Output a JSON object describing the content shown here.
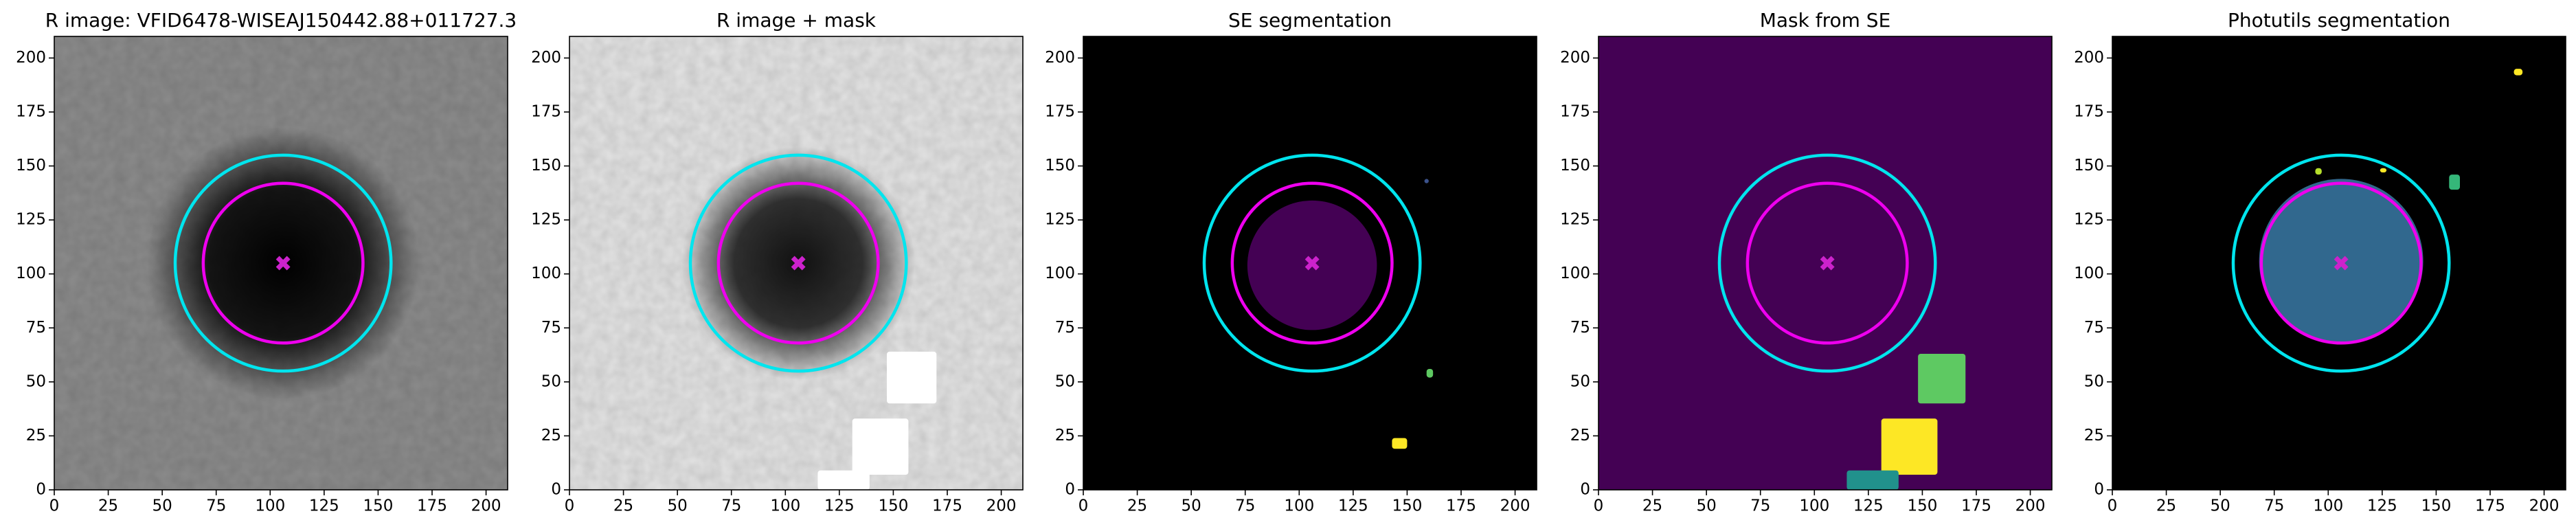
{
  "chart_data": [
    {
      "type": "image",
      "title": "R image: VFID6478-WISEAJ150442.88+011727.3",
      "background": "#8c8c8c",
      "noise": true,
      "blob": {
        "x": 106,
        "y": 105,
        "r": 42,
        "color": "#000000"
      },
      "patches": [],
      "circles": [
        {
          "x": 106,
          "y": 105,
          "r": 50,
          "color": "#00e5ee"
        },
        {
          "x": 106,
          "y": 105,
          "r": 37,
          "color": "#ee00ee"
        }
      ],
      "marker": {
        "x": 106,
        "y": 105,
        "color": "#cc22cc"
      },
      "xlim": [
        0,
        210
      ],
      "ylim": [
        0,
        210
      ],
      "xticks": [
        0,
        25,
        50,
        75,
        100,
        125,
        150,
        175,
        200
      ],
      "yticks": [
        0,
        25,
        50,
        75,
        100,
        125,
        150,
        175,
        200
      ]
    },
    {
      "type": "image",
      "title": "R image + mask",
      "background": "#e4e4e4",
      "noise": true,
      "blob": {
        "x": 106,
        "y": 105,
        "r": 36,
        "color": "#111111"
      },
      "patches": [
        {
          "x": 147,
          "y": 40,
          "w": 23,
          "h": 24,
          "color": "#ffffff"
        },
        {
          "x": 131,
          "y": 7,
          "w": 26,
          "h": 26,
          "color": "#ffffff"
        },
        {
          "x": 115,
          "y": 0,
          "w": 24,
          "h": 9,
          "color": "#ffffff"
        }
      ],
      "circles": [
        {
          "x": 106,
          "y": 105,
          "r": 50,
          "color": "#00e5ee"
        },
        {
          "x": 106,
          "y": 105,
          "r": 37,
          "color": "#ee00ee"
        }
      ],
      "marker": {
        "x": 106,
        "y": 105,
        "color": "#cc22cc"
      },
      "xlim": [
        0,
        210
      ],
      "ylim": [
        0,
        210
      ],
      "xticks": [
        0,
        25,
        50,
        75,
        100,
        125,
        150,
        175,
        200
      ],
      "yticks": [
        0,
        25,
        50,
        75,
        100,
        125,
        150,
        175,
        200
      ]
    },
    {
      "type": "image",
      "title": "SE segmentation",
      "background": "#000000",
      "noise": false,
      "blob": {
        "x": 106,
        "y": 104,
        "r": 30,
        "color": "#440154"
      },
      "patches": [
        {
          "x": 143,
          "y": 19,
          "w": 7,
          "h": 5,
          "color": "#fde725"
        },
        {
          "x": 159,
          "y": 52,
          "w": 3,
          "h": 4,
          "color": "#5ec962"
        },
        {
          "x": 158,
          "y": 142,
          "w": 2,
          "h": 2,
          "color": "#3b528b"
        }
      ],
      "circles": [
        {
          "x": 106,
          "y": 105,
          "r": 50,
          "color": "#00e5ee"
        },
        {
          "x": 106,
          "y": 105,
          "r": 37,
          "color": "#ee00ee"
        }
      ],
      "marker": {
        "x": 106,
        "y": 105,
        "color": "#cc22cc"
      },
      "xlim": [
        0,
        210
      ],
      "ylim": [
        0,
        210
      ],
      "xticks": [
        0,
        25,
        50,
        75,
        100,
        125,
        150,
        175,
        200
      ],
      "yticks": [
        0,
        25,
        50,
        75,
        100,
        125,
        150,
        175,
        200
      ]
    },
    {
      "type": "image",
      "title": "Mask from SE",
      "background": "#440154",
      "noise": false,
      "blob": null,
      "patches": [
        {
          "x": 148,
          "y": 40,
          "w": 22,
          "h": 23,
          "color": "#5ec962"
        },
        {
          "x": 131,
          "y": 7,
          "w": 26,
          "h": 26,
          "color": "#fde725"
        },
        {
          "x": 115,
          "y": 0,
          "w": 24,
          "h": 9,
          "color": "#21918c"
        }
      ],
      "circles": [
        {
          "x": 106,
          "y": 105,
          "r": 50,
          "color": "#00e5ee"
        },
        {
          "x": 106,
          "y": 105,
          "r": 37,
          "color": "#ee00ee"
        }
      ],
      "marker": {
        "x": 106,
        "y": 105,
        "color": "#cc22cc"
      },
      "xlim": [
        0,
        210
      ],
      "ylim": [
        0,
        210
      ],
      "xticks": [
        0,
        25,
        50,
        75,
        100,
        125,
        150,
        175,
        200
      ],
      "yticks": [
        0,
        25,
        50,
        75,
        100,
        125,
        150,
        175,
        200
      ]
    },
    {
      "type": "image",
      "title": "Photutils segmentation",
      "background": "#000000",
      "noise": false,
      "blob": {
        "x": 106,
        "y": 106,
        "r": 38,
        "color": "#31688e"
      },
      "patches": [
        {
          "x": 186,
          "y": 192,
          "w": 4,
          "h": 3,
          "color": "#fde725"
        },
        {
          "x": 156,
          "y": 139,
          "w": 5,
          "h": 7,
          "color": "#35b779"
        },
        {
          "x": 94,
          "y": 146,
          "w": 3,
          "h": 3,
          "color": "#b5de2b"
        },
        {
          "x": 124,
          "y": 147,
          "w": 3,
          "h": 2,
          "color": "#fde725"
        }
      ],
      "circles": [
        {
          "x": 106,
          "y": 105,
          "r": 50,
          "color": "#00e5ee"
        },
        {
          "x": 106,
          "y": 105,
          "r": 37,
          "color": "#ee00ee"
        }
      ],
      "marker": {
        "x": 106,
        "y": 105,
        "color": "#cc22cc"
      },
      "xlim": [
        0,
        210
      ],
      "ylim": [
        0,
        210
      ],
      "xticks": [
        0,
        25,
        50,
        75,
        100,
        125,
        150,
        175,
        200
      ],
      "yticks": [
        0,
        25,
        50,
        75,
        100,
        125,
        150,
        175,
        200
      ]
    }
  ]
}
